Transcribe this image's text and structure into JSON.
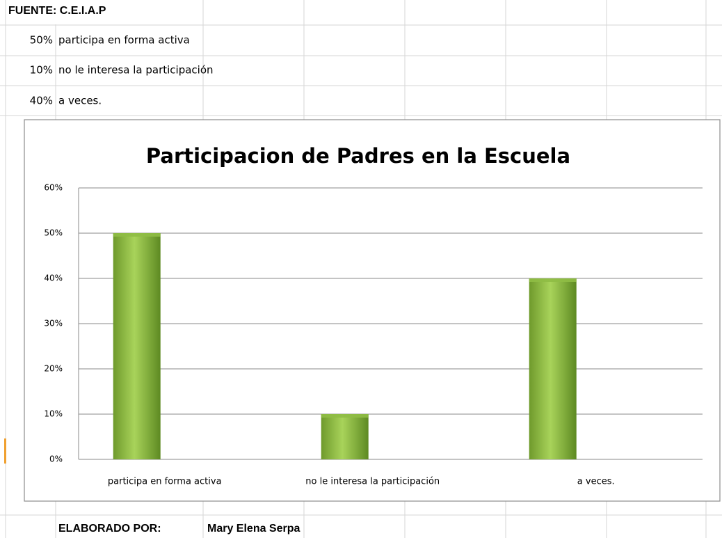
{
  "sheet": {
    "source": "FUENTE: C.E.I.A.P",
    "rows": [
      {
        "pct": "50%",
        "text": "participa en forma activa"
      },
      {
        "pct": "10%",
        "text": "no le interesa la participación"
      },
      {
        "pct": "40%",
        "text": "a veces."
      }
    ],
    "footer_label": "ELABORADO POR:",
    "footer_name": "Mary Elena Serpa"
  },
  "chart_data": {
    "type": "bar",
    "title": "Participacion de Padres en la Escuela",
    "categories": [
      "participa en forma activa",
      "no le interesa la participación",
      "a veces."
    ],
    "values": [
      50,
      10,
      40
    ],
    "color": "#8fbc45",
    "ylim": [
      0,
      60
    ],
    "yticks": [
      {
        "value": 0,
        "label": "0%"
      },
      {
        "value": 10,
        "label": "10%"
      },
      {
        "value": 20,
        "label": "20%"
      },
      {
        "value": 30,
        "label": "30%"
      },
      {
        "value": 40,
        "label": "40%"
      },
      {
        "value": 50,
        "label": "50%"
      },
      {
        "value": 60,
        "label": "60%"
      }
    ],
    "grid": true
  }
}
